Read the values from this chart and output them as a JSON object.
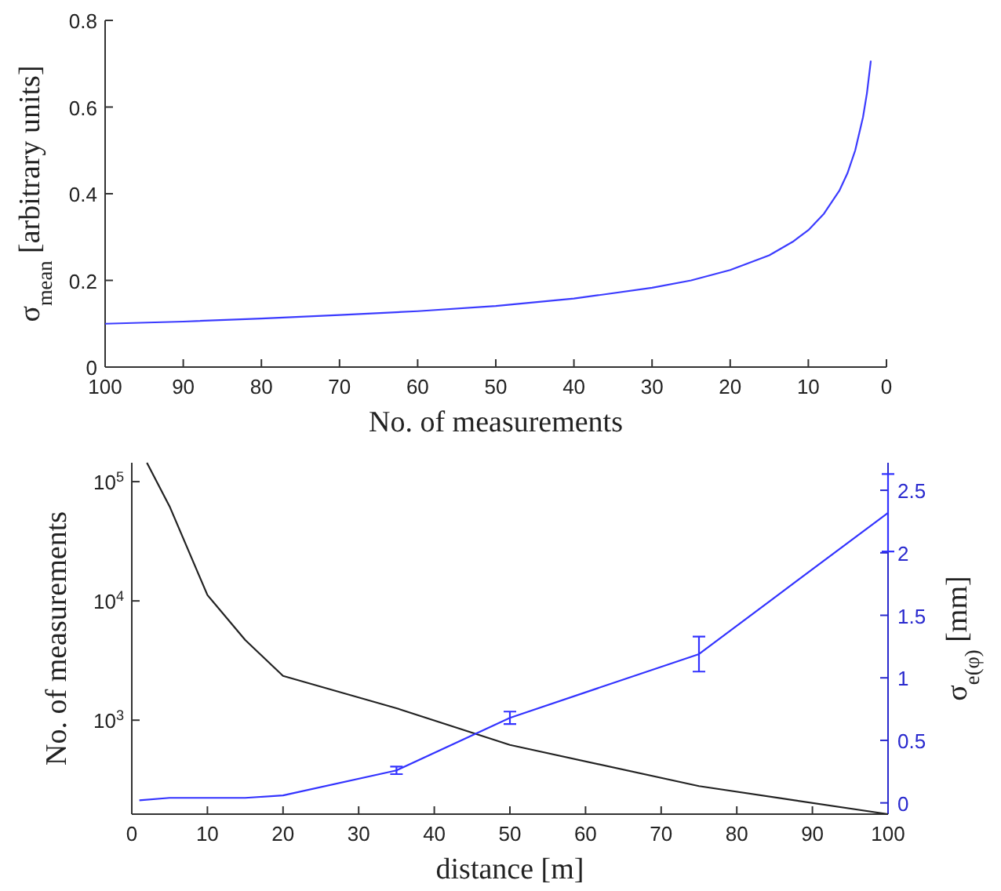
{
  "chart_data": [
    {
      "type": "line",
      "xlabel": "No. of measurements",
      "ylabel": "σ$_{mean}$ [arbitrary units]",
      "xlim": [
        100,
        0
      ],
      "xticks": [
        100,
        90,
        80,
        70,
        60,
        50,
        40,
        30,
        20,
        10,
        0
      ],
      "ylim": [
        0,
        0.8
      ],
      "yticks": [
        0,
        0.2,
        0.4,
        0.6,
        0.8
      ],
      "series": [
        {
          "color": "#3b3bff",
          "x": [
            100,
            90,
            80,
            70,
            60,
            50,
            40,
            30,
            25,
            20,
            15,
            12,
            10,
            8,
            6,
            5,
            4,
            3,
            2.5,
            2
          ],
          "values": [
            0.1,
            0.105,
            0.112,
            0.12,
            0.129,
            0.141,
            0.158,
            0.183,
            0.2,
            0.224,
            0.258,
            0.289,
            0.316,
            0.354,
            0.408,
            0.447,
            0.5,
            0.577,
            0.632,
            0.707
          ]
        }
      ]
    },
    {
      "type": "line",
      "xlabel": "distance [m]",
      "ylabel": "No. of measurements",
      "y2label": "σ$_{e(φ)}$ [mm]",
      "log": "y",
      "xlim": [
        0,
        100
      ],
      "xticks": [
        0,
        10,
        20,
        30,
        40,
        50,
        60,
        70,
        80,
        90,
        100
      ],
      "ylim": [
        163,
        144000
      ],
      "yticks": [
        {
          "value": 1000,
          "label": "10$^{3}$"
        },
        {
          "value": 10000,
          "label": "10$^{4}$"
        },
        {
          "value": 100000,
          "label": "10$^{5}$"
        }
      ],
      "y2lim": [
        -0.09,
        2.72
      ],
      "y2ticks": [
        0,
        0.5,
        1,
        1.5,
        2,
        2.5
      ],
      "series": [
        {
          "color": "#222222",
          "x": [
            2,
            5,
            10,
            15,
            20,
            35,
            50,
            75,
            100
          ],
          "values": [
            144000,
            62000,
            11200,
            4700,
            2350,
            1260,
            620,
            280,
            163
          ]
        },
        {
          "color": "#3333ff",
          "axis": "y2",
          "x": [
            1,
            5,
            10,
            15,
            20,
            35,
            50,
            75,
            100
          ],
          "values": [
            0.02,
            0.04,
            0.04,
            0.04,
            0.06,
            0.26,
            0.68,
            1.19,
            2.32
          ],
          "errors": [
            null,
            null,
            null,
            null,
            null,
            0.03,
            0.05,
            0.14,
            [
              2.01,
              2.63
            ]
          ]
        }
      ]
    }
  ]
}
